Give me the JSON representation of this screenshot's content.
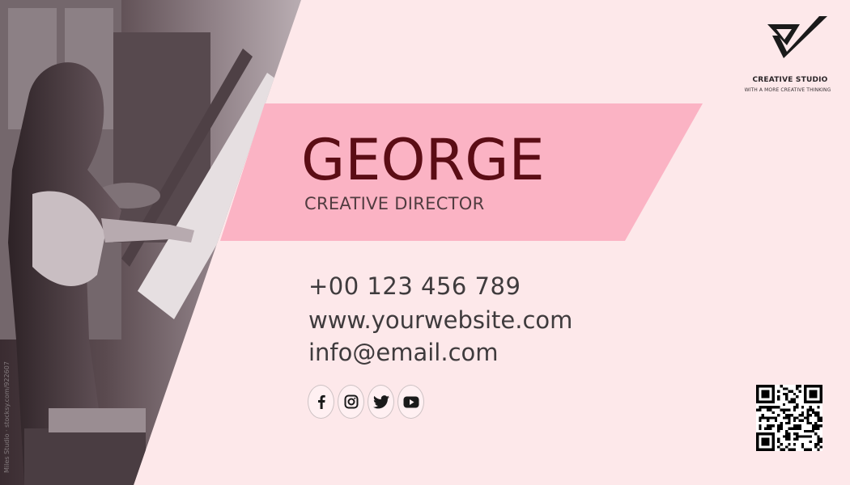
{
  "card": {
    "name": "GEORGE",
    "job_title": "CREATIVE DIRECTOR",
    "phone": "+00 123 456 789",
    "website": "www.yourwebsite.com",
    "email": "info@email.com"
  },
  "brand": {
    "company": "CREATIVE STUDIO",
    "tagline": "WITH A MORE CREATIVE THINKING"
  },
  "photo": {
    "credit": "Miles Studio · stocksy.com/922607"
  },
  "social_icons": [
    "facebook-icon",
    "instagram-icon",
    "twitter-icon",
    "youtube-icon"
  ],
  "colors": {
    "background": "#fde8ea",
    "ribbon": "#fbb3c4",
    "name": "#5b0d15",
    "text": "#3f3b3d"
  }
}
